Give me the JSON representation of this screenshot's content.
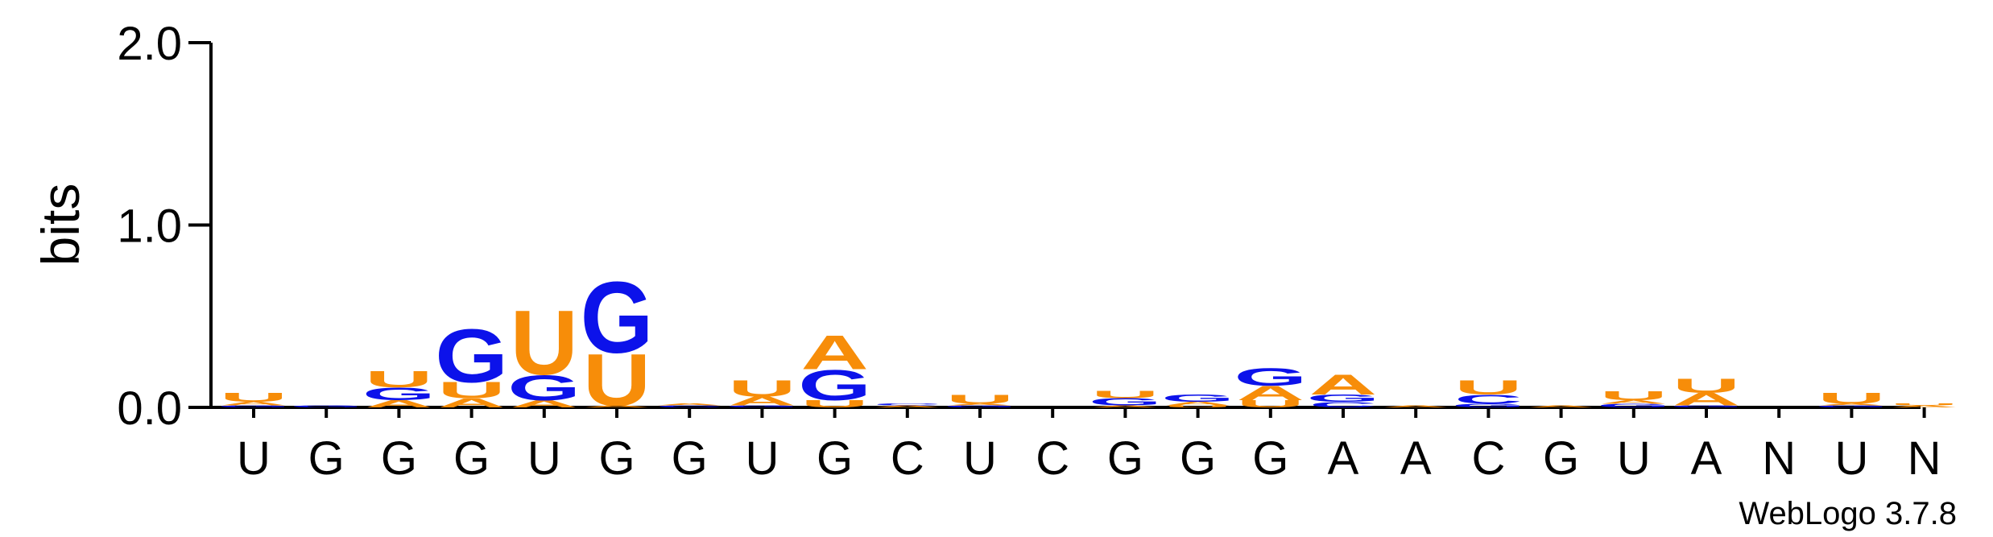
{
  "chart_data": {
    "type": "sequence-logo",
    "ylabel": "bits",
    "ylim": [
      0,
      2.0
    ],
    "yticks": [
      {
        "value": 0.0,
        "label": "0.0"
      },
      {
        "value": 1.0,
        "label": "1.0"
      },
      {
        "value": 2.0,
        "label": "2.0"
      }
    ],
    "colors": {
      "A": "#f78d09",
      "U": "#f78d09",
      "G": "#0c12ea",
      "C": "#0c12ea",
      "axis": "#000000"
    },
    "positions": [
      {
        "label": "U",
        "stack": [
          {
            "letter": "G",
            "bits": 0.01
          },
          {
            "letter": "A",
            "bits": 0.02
          },
          {
            "letter": "U",
            "bits": 0.05
          }
        ]
      },
      {
        "label": "G",
        "stack": [
          {
            "letter": "G",
            "bits": 0.01
          }
        ]
      },
      {
        "label": "G",
        "stack": [
          {
            "letter": "A",
            "bits": 0.04
          },
          {
            "letter": "G",
            "bits": 0.07
          },
          {
            "letter": "U",
            "bits": 0.09
          }
        ]
      },
      {
        "label": "G",
        "stack": [
          {
            "letter": "A",
            "bits": 0.05
          },
          {
            "letter": "U",
            "bits": 0.09
          },
          {
            "letter": "G",
            "bits": 0.3
          }
        ]
      },
      {
        "label": "U",
        "stack": [
          {
            "letter": "A",
            "bits": 0.04
          },
          {
            "letter": "G",
            "bits": 0.14
          },
          {
            "letter": "U",
            "bits": 0.36
          }
        ]
      },
      {
        "label": "G",
        "stack": [
          {
            "letter": "A",
            "bits": 0.01
          },
          {
            "letter": "U",
            "bits": 0.29
          },
          {
            "letter": "G",
            "bits": 0.4
          }
        ]
      },
      {
        "label": "G",
        "stack": [
          {
            "letter": "C",
            "bits": 0.01
          },
          {
            "letter": "A",
            "bits": 0.01
          }
        ]
      },
      {
        "label": "U",
        "stack": [
          {
            "letter": "G",
            "bits": 0.01
          },
          {
            "letter": "A",
            "bits": 0.05
          },
          {
            "letter": "U",
            "bits": 0.09
          }
        ]
      },
      {
        "label": "G",
        "stack": [
          {
            "letter": "U",
            "bits": 0.04
          },
          {
            "letter": "G",
            "bits": 0.17
          },
          {
            "letter": "A",
            "bits": 0.19
          }
        ]
      },
      {
        "label": "C",
        "stack": [
          {
            "letter": "A",
            "bits": 0.01
          },
          {
            "letter": "C",
            "bits": 0.01
          }
        ]
      },
      {
        "label": "U",
        "stack": [
          {
            "letter": "G",
            "bits": 0.01
          },
          {
            "letter": "A",
            "bits": 0.01
          },
          {
            "letter": "U",
            "bits": 0.05
          }
        ]
      },
      {
        "label": "C",
        "stack": []
      },
      {
        "label": "G",
        "stack": [
          {
            "letter": "A",
            "bits": 0.01
          },
          {
            "letter": "G",
            "bits": 0.04
          },
          {
            "letter": "U",
            "bits": 0.04
          }
        ]
      },
      {
        "label": "G",
        "stack": [
          {
            "letter": "U",
            "bits": 0.01
          },
          {
            "letter": "A",
            "bits": 0.02
          },
          {
            "letter": "G",
            "bits": 0.04
          }
        ]
      },
      {
        "label": "G",
        "stack": [
          {
            "letter": "U",
            "bits": 0.04
          },
          {
            "letter": "A",
            "bits": 0.08
          },
          {
            "letter": "G",
            "bits": 0.1
          }
        ]
      },
      {
        "label": "A",
        "stack": [
          {
            "letter": "C",
            "bits": 0.03
          },
          {
            "letter": "G",
            "bits": 0.04
          },
          {
            "letter": "A",
            "bits": 0.11
          }
        ]
      },
      {
        "label": "A",
        "stack": [
          {
            "letter": "A",
            "bits": 0.01
          }
        ]
      },
      {
        "label": "C",
        "stack": [
          {
            "letter": "G",
            "bits": 0.02
          },
          {
            "letter": "C",
            "bits": 0.05
          },
          {
            "letter": "U",
            "bits": 0.08
          }
        ]
      },
      {
        "label": "G",
        "stack": [
          {
            "letter": "A",
            "bits": 0.01
          }
        ]
      },
      {
        "label": "U",
        "stack": [
          {
            "letter": "G",
            "bits": 0.02
          },
          {
            "letter": "A",
            "bits": 0.02
          },
          {
            "letter": "U",
            "bits": 0.05
          }
        ]
      },
      {
        "label": "A",
        "stack": [
          {
            "letter": "G",
            "bits": 0.01
          },
          {
            "letter": "A",
            "bits": 0.07
          },
          {
            "letter": "U",
            "bits": 0.08
          }
        ]
      },
      {
        "label": "N",
        "stack": []
      },
      {
        "label": "U",
        "stack": [
          {
            "letter": "G",
            "bits": 0.01
          },
          {
            "letter": "A",
            "bits": 0.01
          },
          {
            "letter": "U",
            "bits": 0.06
          }
        ]
      },
      {
        "label": "N",
        "stack": [
          {
            "letter": "A",
            "bits": 0.01
          },
          {
            "letter": "U",
            "bits": 0.01
          }
        ]
      }
    ],
    "credit": "WebLogo 3.7.8"
  }
}
